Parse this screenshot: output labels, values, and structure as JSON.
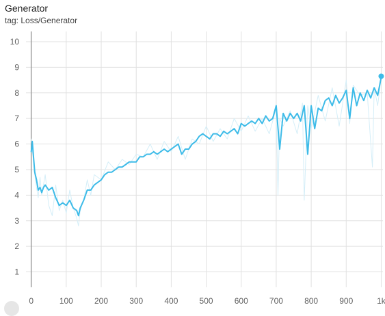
{
  "card": {
    "title": "Generator",
    "tag": "tag: Loss/Generator"
  },
  "chart_data": {
    "type": "line",
    "title": "Generator",
    "subtitle": "tag: Loss/Generator",
    "xlabel": "",
    "ylabel": "",
    "xlim": [
      -15,
      1005
    ],
    "ylim": [
      0.4,
      10.4
    ],
    "grid": true,
    "x_ticks": [
      0,
      100,
      200,
      300,
      400,
      500,
      600,
      700,
      800,
      900,
      1000
    ],
    "x_tick_labels": [
      "0",
      "100",
      "200",
      "300",
      "400",
      "500",
      "600",
      "700",
      "800",
      "900",
      "1k"
    ],
    "y_ticks": [
      1,
      2,
      3,
      4,
      5,
      6,
      7,
      8,
      9,
      10
    ],
    "y_tick_labels": [
      "1",
      "2",
      "3",
      "4",
      "5",
      "6",
      "7",
      "8",
      "9",
      "10"
    ],
    "series": [
      {
        "role": "raw",
        "color": "#d4eef8",
        "x": [
          0,
          5,
          10,
          15,
          20,
          25,
          30,
          40,
          50,
          60,
          70,
          80,
          90,
          100,
          110,
          120,
          130,
          135,
          140,
          150,
          160,
          170,
          180,
          200,
          220,
          240,
          260,
          280,
          300,
          320,
          340,
          360,
          380,
          400,
          420,
          440,
          460,
          480,
          500,
          520,
          540,
          560,
          580,
          600,
          620,
          640,
          660,
          680,
          700,
          705,
          710,
          720,
          740,
          760,
          775,
          780,
          790,
          800,
          820,
          840,
          860,
          880,
          900,
          910,
          920,
          940,
          960,
          975,
          980,
          990,
          1000
        ],
        "y": [
          6.2,
          5.5,
          4.8,
          4.3,
          3.9,
          4.7,
          4.0,
          4.8,
          3.6,
          3.2,
          4.4,
          3.4,
          3.8,
          3.3,
          4.2,
          3.5,
          3.1,
          2.8,
          3.4,
          3.8,
          4.6,
          4.0,
          4.8,
          4.6,
          5.3,
          5.0,
          5.4,
          5.2,
          5.6,
          5.5,
          6.0,
          5.4,
          6.1,
          5.7,
          6.3,
          5.4,
          6.2,
          6.0,
          6.7,
          6.1,
          6.6,
          6.2,
          7.0,
          6.5,
          7.1,
          6.5,
          7.0,
          6.4,
          7.4,
          4.0,
          7.0,
          6.7,
          7.3,
          6.4,
          7.6,
          3.8,
          7.5,
          6.6,
          7.9,
          6.9,
          8.2,
          6.7,
          8.5,
          6.8,
          8.3,
          7.9,
          8.0,
          5.1,
          8.2,
          7.5,
          8.6
        ]
      },
      {
        "role": "smoothed",
        "color": "#3dbbe8",
        "x": [
          0,
          3,
          6,
          10,
          15,
          20,
          25,
          30,
          35,
          40,
          50,
          60,
          70,
          80,
          90,
          100,
          110,
          120,
          130,
          135,
          140,
          150,
          160,
          170,
          180,
          190,
          200,
          210,
          220,
          230,
          240,
          250,
          260,
          270,
          280,
          290,
          300,
          310,
          320,
          330,
          340,
          350,
          360,
          370,
          380,
          390,
          400,
          410,
          420,
          430,
          440,
          450,
          460,
          470,
          480,
          490,
          500,
          510,
          520,
          530,
          540,
          550,
          560,
          570,
          580,
          590,
          600,
          610,
          620,
          630,
          640,
          650,
          660,
          670,
          680,
          690,
          700,
          710,
          720,
          730,
          740,
          750,
          760,
          770,
          780,
          790,
          800,
          810,
          820,
          830,
          840,
          850,
          860,
          870,
          880,
          890,
          900,
          910,
          920,
          930,
          940,
          950,
          960,
          970,
          980,
          990,
          1000
        ],
        "y": [
          5.7,
          6.1,
          5.6,
          4.9,
          4.6,
          4.2,
          4.3,
          4.1,
          4.3,
          4.4,
          4.2,
          4.3,
          3.9,
          3.6,
          3.7,
          3.6,
          3.8,
          3.5,
          3.4,
          3.2,
          3.5,
          3.8,
          4.2,
          4.2,
          4.4,
          4.5,
          4.6,
          4.8,
          4.9,
          4.9,
          5.0,
          5.1,
          5.1,
          5.2,
          5.3,
          5.3,
          5.3,
          5.5,
          5.5,
          5.6,
          5.6,
          5.7,
          5.6,
          5.7,
          5.8,
          5.7,
          5.8,
          5.9,
          6.0,
          5.6,
          5.8,
          5.8,
          6.0,
          6.1,
          6.3,
          6.4,
          6.3,
          6.2,
          6.4,
          6.4,
          6.3,
          6.5,
          6.4,
          6.5,
          6.6,
          6.4,
          6.8,
          6.7,
          6.8,
          6.9,
          6.8,
          7.0,
          6.8,
          7.1,
          6.9,
          7.0,
          7.5,
          5.8,
          7.2,
          6.9,
          7.2,
          7.0,
          7.2,
          6.9,
          7.5,
          5.6,
          7.5,
          6.6,
          7.4,
          7.3,
          7.7,
          7.8,
          7.5,
          7.9,
          7.6,
          7.8,
          8.1,
          7.0,
          8.2,
          7.5,
          8.0,
          7.7,
          8.1,
          7.8,
          8.2,
          7.9,
          8.6
        ]
      }
    ],
    "endpoint": {
      "x": 1000,
      "y": 8.65,
      "color": "#3dbbe8"
    }
  }
}
